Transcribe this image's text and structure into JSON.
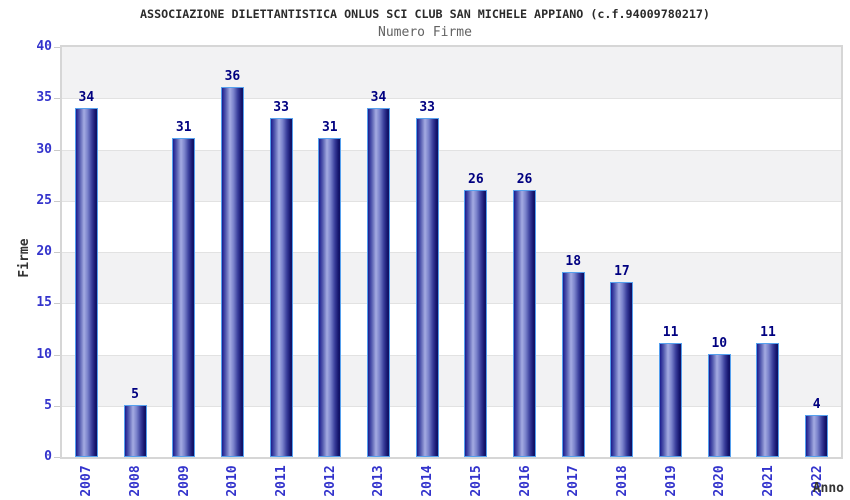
{
  "chart_data": {
    "type": "bar",
    "title": "ASSOCIAZIONE DILETTANTISTICA ONLUS SCI CLUB SAN MICHELE APPIANO (c.f.94009780217)",
    "subtitle": "Numero Firme",
    "xlabel": "Anno",
    "ylabel": "Firme",
    "categories": [
      "2007",
      "2008",
      "2009",
      "2010",
      "2011",
      "2012",
      "2013",
      "2014",
      "2015",
      "2016",
      "2017",
      "2018",
      "2019",
      "2020",
      "2021",
      "2022"
    ],
    "values": [
      34,
      5,
      31,
      36,
      33,
      31,
      34,
      33,
      26,
      26,
      18,
      17,
      11,
      10,
      11,
      4
    ],
    "ylim": [
      0,
      40
    ],
    "ytick_step": 5,
    "grid": "horizontal alternating bands with light gridlines",
    "legend": "none"
  },
  "colors": {
    "title": "#2b2b2b",
    "subtitle": "#636363",
    "axis_title": "#333333",
    "tick_label": "#3333cc",
    "value_label": "#000080",
    "band_gray": "#f2f2f3",
    "band_white": "#ffffff",
    "gridline": "#e2e2e2",
    "plot_border": "#d6d6d6",
    "tick_mark": "#c9c9c9",
    "bar_border": "#55a0ee",
    "bar_gradient": [
      "#1b1b8e",
      "#555cb0",
      "#a4abe2",
      "#7b83cc",
      "#3a3f9c",
      "#15156e",
      "#101060"
    ]
  }
}
